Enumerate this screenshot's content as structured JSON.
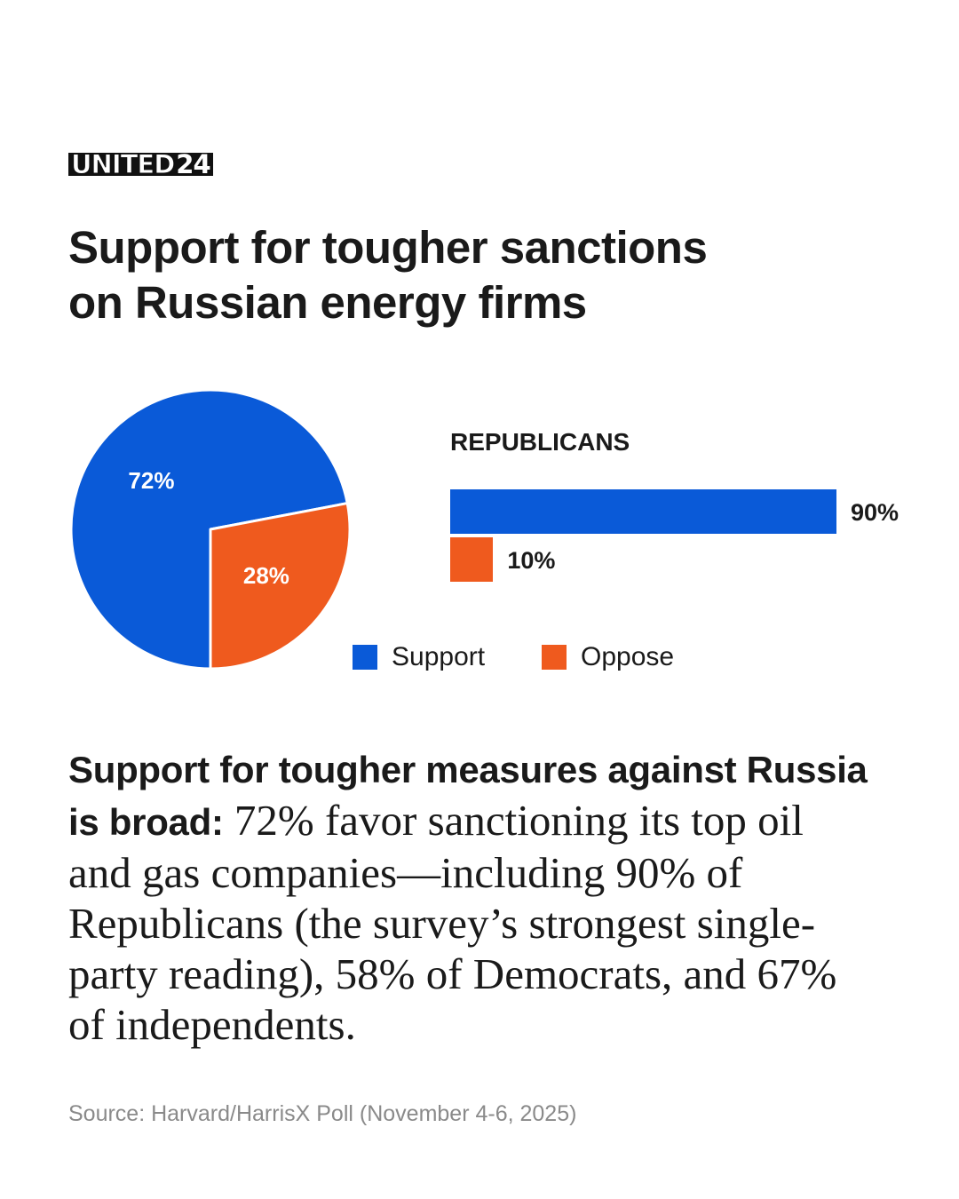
{
  "brand": {
    "logo_text_a": "UNITED",
    "logo_text_b": "24"
  },
  "headline_lines": [
    "Support for tougher sanctions",
    "on Russian energy firms"
  ],
  "colors": {
    "support": "#0a5ad8",
    "oppose": "#ef5a1e"
  },
  "chart_data": [
    {
      "type": "pie",
      "categories": [
        "Support",
        "Oppose"
      ],
      "values": [
        72,
        28
      ],
      "labels": [
        "72%",
        "28%"
      ]
    },
    {
      "type": "bar",
      "title": "REPUBLICANS",
      "orientation": "horizontal",
      "categories": [
        "Support",
        "Oppose"
      ],
      "values": [
        90,
        10
      ],
      "labels": [
        "90%",
        "10%"
      ],
      "xlim": [
        0,
        90
      ]
    }
  ],
  "legend": [
    {
      "label": "Support",
      "color": "#0a5ad8"
    },
    {
      "label": "Oppose",
      "color": "#ef5a1e"
    }
  ],
  "body": {
    "lead": "Support for tougher measures against Russia is broad:",
    "text": " 72% favor sanctioning its top oil and gas companies—including 90% of Republicans (the survey’s strongest single-party reading), 58% of Democrats, and 67% of independents."
  },
  "source": "Source: Harvard/HarrisX Poll (November 4-6, 2025)"
}
